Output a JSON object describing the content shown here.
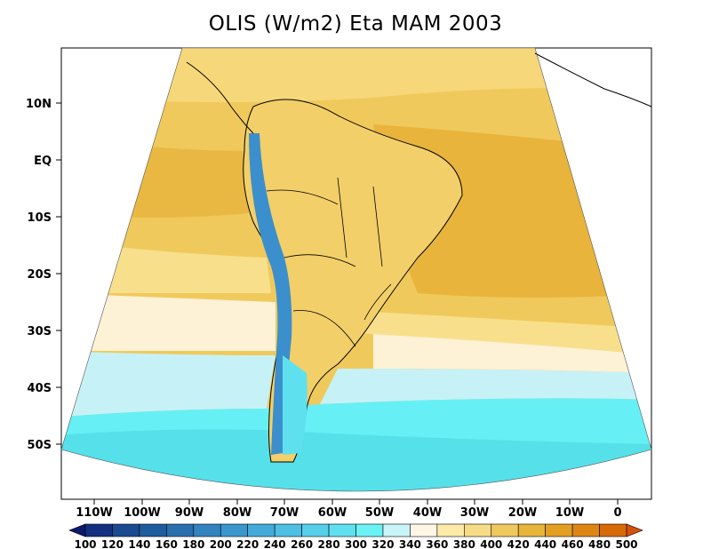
{
  "title": "OLIS (W/m2) Eta MAM 2003",
  "lat_labels": [
    "10N",
    "EQ",
    "10S",
    "20S",
    "30S",
    "40S",
    "50S"
  ],
  "lon_labels": [
    "110W",
    "100W",
    "90W",
    "80W",
    "70W",
    "60W",
    "50W",
    "40W",
    "30W",
    "20W",
    "10W",
    "0"
  ],
  "colorbar": {
    "levels": [
      "100",
      "120",
      "140",
      "160",
      "180",
      "200",
      "220",
      "240",
      "260",
      "280",
      "300",
      "320",
      "340",
      "360",
      "380",
      "400",
      "420",
      "440",
      "460",
      "480",
      "500"
    ],
    "colors": [
      "#0a1a6e",
      "#12307f",
      "#1a4a8f",
      "#1f5c9e",
      "#2a6fae",
      "#3383bf",
      "#3a97ce",
      "#42abd9",
      "#4dbfe3",
      "#56d0ea",
      "#5fe0ef",
      "#6af2f5",
      "#c9f4f8",
      "#fff6e6",
      "#fdeaa8",
      "#f7dc86",
      "#efc85e",
      "#e7b53a",
      "#e39f22",
      "#dd8614",
      "#d86a07",
      "#d4520a"
    ]
  },
  "legend_colors": {
    "land_bg": "#ffffff",
    "deep_yellow": "#ebbc46",
    "mid_yellow": "#f2cf69",
    "light_yellow": "#f9e18e",
    "cream": "#fdf2dc",
    "pale_cyan": "#c6f2f7",
    "cyan": "#66f0f5",
    "mid_cyan": "#55dfe9",
    "andes_blue": "#3b8fcc"
  }
}
